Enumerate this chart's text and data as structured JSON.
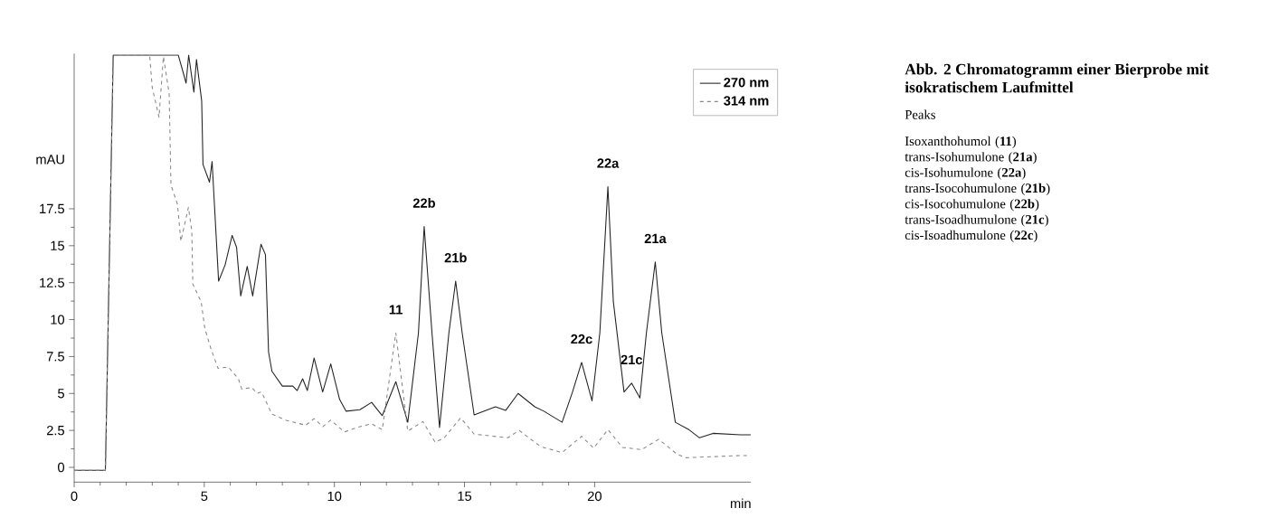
{
  "chart_data": {
    "type": "line",
    "title": "Abb. 2  Chromatogramm einer Bierprobe mit isokratischem Laufmittel",
    "subtitle": "Peaks",
    "xlabel": "min",
    "ylabel": "mAU",
    "xlim": [
      0,
      26
    ],
    "ylim": [
      -1,
      28
    ],
    "xticks": [
      0,
      5,
      10,
      15,
      20
    ],
    "yticks": [
      0,
      2.5,
      5,
      7.5,
      10,
      12.5,
      15,
      17.5
    ],
    "grid": false,
    "legend": "top right",
    "marker": "none",
    "series": [
      {
        "name": "270 nm",
        "color": "#222222",
        "line_style": "solid",
        "x": [
          0,
          1.2,
          1.5,
          4.0,
          4.24,
          4.3,
          4.4,
          4.6,
          4.7,
          4.9,
          4.95,
          5.2,
          5.3,
          5.55,
          5.8,
          6.07,
          6.24,
          6.4,
          6.65,
          6.86,
          7.18,
          7.35,
          7.47,
          7.6,
          8.0,
          8.4,
          8.57,
          8.78,
          8.96,
          9.22,
          9.55,
          9.86,
          10.2,
          10.45,
          10.98,
          11.43,
          11.84,
          12.36,
          12.82,
          13.23,
          13.45,
          13.75,
          14.04,
          14.4,
          14.66,
          14.91,
          15.37,
          16.19,
          16.58,
          17.06,
          17.7,
          18.05,
          18.75,
          19.15,
          19.5,
          19.9,
          20.2,
          20.51,
          20.72,
          21.13,
          21.42,
          21.74,
          21.99,
          22.33,
          22.58,
          23.1,
          23.62,
          24.03,
          24.55,
          25.6,
          26.0
        ],
        "values": [
          -0.2,
          -0.2,
          27.9,
          27.9,
          26.4,
          26,
          27.9,
          25.4,
          27.6,
          24.8,
          20.5,
          19.3,
          20.7,
          12.6,
          13.7,
          15.7,
          14.9,
          11.6,
          13.6,
          11.6,
          15.1,
          14.4,
          7.8,
          6.5,
          5.5,
          5.5,
          5.2,
          6.0,
          5.2,
          7.4,
          5.1,
          7.0,
          4.6,
          3.8,
          3.9,
          4.4,
          3.5,
          5.8,
          3.05,
          9.1,
          16.3,
          9.1,
          2.7,
          9.1,
          12.6,
          9.1,
          3.55,
          4.1,
          3.85,
          5.0,
          4.1,
          3.8,
          3.05,
          5.1,
          7.1,
          4.5,
          9.1,
          19.0,
          11.2,
          5.1,
          5.7,
          4.7,
          9.1,
          13.9,
          9.1,
          3.05,
          2.55,
          2.0,
          2.3,
          2.2,
          2.2
        ]
      },
      {
        "name": "314 nm",
        "color": "#888888",
        "line_style": "dashed",
        "x": [
          0,
          1.2,
          1.5,
          2.9,
          3.0,
          3.26,
          3.43,
          3.65,
          3.72,
          3.97,
          4.1,
          4.39,
          4.52,
          4.56,
          4.88,
          5.02,
          5.26,
          5.53,
          5.92,
          6.31,
          6.44,
          6.83,
          7.02,
          7.2,
          7.6,
          8.12,
          8.9,
          9.22,
          9.55,
          9.86,
          10.38,
          10.98,
          11.43,
          11.84,
          12.36,
          12.82,
          13.4,
          13.87,
          14.22,
          14.85,
          15.37,
          16.66,
          17.1,
          17.93,
          18.75,
          19.5,
          19.96,
          20.51,
          21.07,
          21.81,
          22.46,
          23.16,
          23.51,
          25.6,
          26.0
        ],
        "values": [
          -0.2,
          -0.2,
          27.9,
          27.9,
          25.7,
          23.7,
          27.8,
          25.3,
          19.1,
          17.8,
          15.3,
          17.6,
          16.0,
          12.4,
          11.2,
          9.4,
          8.0,
          6.7,
          6.8,
          6.0,
          5.3,
          5.4,
          5.0,
          5.1,
          3.6,
          3.2,
          2.85,
          3.3,
          2.75,
          3.2,
          2.4,
          2.75,
          2.95,
          2.55,
          9.1,
          2.45,
          3.1,
          1.7,
          2.0,
          3.35,
          2.25,
          2.0,
          2.5,
          1.4,
          1.0,
          2.1,
          1.3,
          2.55,
          1.35,
          1.2,
          1.9,
          0.9,
          0.65,
          0.8,
          0.8
        ]
      }
    ],
    "annotations": [
      {
        "text": "11",
        "x": 12.36,
        "y": 9.1
      },
      {
        "text": "22b",
        "x": 13.45,
        "y": 16.3
      },
      {
        "text": "21b",
        "x": 14.66,
        "y": 12.6
      },
      {
        "text": "22c",
        "x": 19.5,
        "y": 7.1
      },
      {
        "text": "22a",
        "x": 20.51,
        "y": 19.0
      },
      {
        "text": "21c",
        "x": 21.42,
        "y": 5.7
      },
      {
        "text": "21a",
        "x": 22.33,
        "y": 13.9
      },
      "Isoxanthohumol (**11**)",
      "trans-Isohumulone (**21a**)",
      "cis-Isohumulone (**22a**)",
      "trans-Isocohumulone (**21b**)",
      "cis-Isocohumulone (**22b**)",
      "trans-Isoadhumulone (**21c**)",
      "cis-Isoadhumulone (**22c**)"
    ]
  }
}
